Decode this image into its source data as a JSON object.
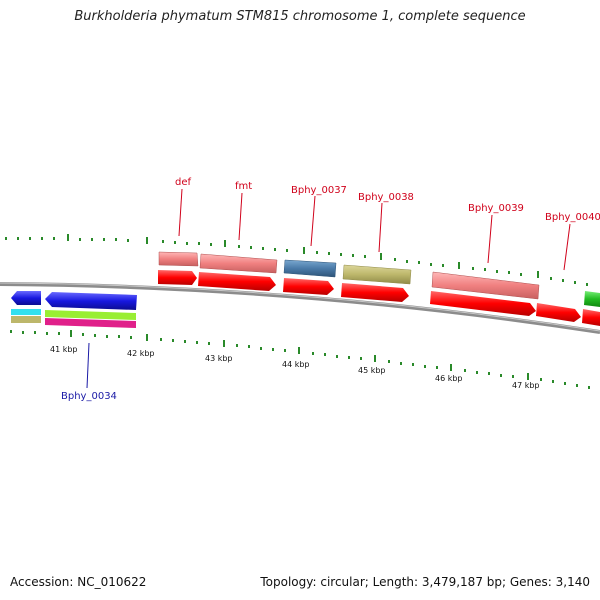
{
  "title": "Burkholderia phymatum STM815 chromosome 1, complete sequence",
  "accession": "Accession: NC_010622",
  "stats": "Topology: circular; Length: 3,479,187 bp; Genes: 3,140",
  "scale_labels": [
    "41 kbp",
    "42 kbp",
    "43 kbp",
    "44 kbp",
    "45 kbp",
    "46 kbp",
    "47 kbp"
  ],
  "gene_labels_top": [
    "def",
    "fmt",
    "Bphy_0037",
    "Bphy_0038",
    "Bphy_0039",
    "Bphy_0040"
  ],
  "gene_labels_bottom": [
    "Bphy_0034"
  ],
  "colors": {
    "backbone": "#8c8c8c",
    "cds": "#ff0000",
    "gene_pink": "#f08080",
    "blue_feature": "#2020d0",
    "steel": "#4a7aa8",
    "khaki": "#bdb76b",
    "green": "#22bb22",
    "cyan": "#33e0ee",
    "lime": "#99ee33",
    "magenta": "#e0208a",
    "tick": "#2a8a2a",
    "label_red": "#d0021b",
    "label_blue": "#1a1aa6"
  }
}
